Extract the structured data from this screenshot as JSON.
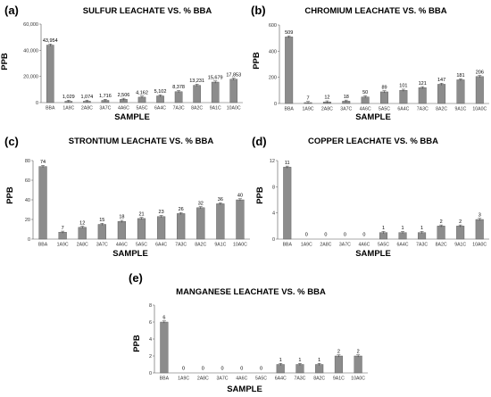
{
  "chart_data": [
    {
      "type": "bar",
      "panel": "(a)",
      "title": "SULFUR LEACHATE VS. % BBA",
      "xlabel": "SAMPLE",
      "ylabel": "PPB",
      "categories": [
        "BBA",
        "1A9C",
        "2A8C",
        "3A7C",
        "4A6C",
        "5A5C",
        "6A4C",
        "7A3C",
        "8A2C",
        "9A1C",
        "10A0C"
      ],
      "values": [
        43954,
        1029,
        1074,
        1716,
        2506,
        4162,
        5102,
        8378,
        13231,
        15679,
        17853
      ],
      "data_labels": [
        "43,954",
        "1,029",
        "1,074",
        "1,716",
        "2,506",
        "4,162",
        "5,102",
        "8,378",
        "13,231",
        "15,679",
        "17,853"
      ],
      "ylim": [
        0,
        60000
      ],
      "yticks": [
        0,
        20000,
        40000,
        60000
      ],
      "ytick_labels": [
        "0",
        "20,000",
        "40,000",
        "60,000"
      ]
    },
    {
      "type": "bar",
      "panel": "(b)",
      "title": "CHROMIUM LEACHATE VS. % BBA",
      "xlabel": "SAMPLE",
      "ylabel": "PPB",
      "categories": [
        "BBA",
        "1A9C",
        "2A8C",
        "3A7C",
        "4A6C",
        "5A5C",
        "6A4C",
        "7A3C",
        "8A2C",
        "9A1C",
        "10A0C"
      ],
      "values": [
        509,
        7,
        12,
        18,
        50,
        89,
        101,
        121,
        147,
        181,
        206
      ],
      "data_labels": [
        "509",
        "7",
        "12",
        "18",
        "50",
        "89",
        "101",
        "121",
        "147",
        "181",
        "206"
      ],
      "ylim": [
        0,
        600
      ],
      "yticks": [
        0,
        200,
        400,
        600
      ],
      "ytick_labels": [
        "0",
        "200",
        "400",
        "600"
      ]
    },
    {
      "type": "bar",
      "panel": "(c)",
      "title": "STRONTIUM LEACHATE VS. % BBA",
      "xlabel": "SAMPLE",
      "ylabel": "PPB",
      "categories": [
        "BBA",
        "1A9C",
        "2A8C",
        "3A7C",
        "4A6C",
        "5A5C",
        "6A4C",
        "7A3C",
        "8A2C",
        "9A1C",
        "10A0C"
      ],
      "values": [
        74,
        7,
        12,
        15,
        18,
        21,
        23,
        26,
        32,
        36,
        40
      ],
      "data_labels": [
        "74",
        "7",
        "12",
        "15",
        "18",
        "21",
        "23",
        "26",
        "32",
        "36",
        "40"
      ],
      "ylim": [
        0,
        80
      ],
      "yticks": [
        0,
        20,
        40,
        60,
        80
      ],
      "ytick_labels": [
        "0",
        "20",
        "40",
        "60",
        "80"
      ]
    },
    {
      "type": "bar",
      "panel": "(d)",
      "title": "COPPER LEACHATE VS. % BBA",
      "xlabel": "SAMPLE",
      "ylabel": "PPB",
      "categories": [
        "BBA",
        "1A9C",
        "2A8C",
        "3A7C",
        "4A6C",
        "5A5C",
        "6A4C",
        "7A3C",
        "8A2C",
        "9A1C",
        "10A0C"
      ],
      "values": [
        11,
        0,
        0,
        0,
        0,
        1,
        1,
        1,
        2,
        2,
        3
      ],
      "data_labels": [
        "11",
        "0",
        "0",
        "0",
        "0",
        "1",
        "1",
        "1",
        "2",
        "2",
        "3"
      ],
      "ylim": [
        0,
        12
      ],
      "yticks": [
        0,
        4,
        8,
        12
      ],
      "ytick_labels": [
        "0",
        "4",
        "8",
        "12"
      ]
    },
    {
      "type": "bar",
      "panel": "(e)",
      "title": "MANGANESE LEACHATE VS. % BBA",
      "xlabel": "SAMPLE",
      "ylabel": "PPB",
      "categories": [
        "BBA",
        "1A9C",
        "2A8C",
        "3A7C",
        "4A6C",
        "5A5C",
        "6A4C",
        "7A3C",
        "8A2C",
        "9A1C",
        "10A0C"
      ],
      "values": [
        6,
        0,
        0,
        0,
        0,
        0,
        1,
        1,
        1,
        2,
        2
      ],
      "data_labels": [
        "6",
        "0",
        "0",
        "0",
        "0",
        "0",
        "1",
        "1",
        "1",
        "2",
        "2"
      ],
      "ylim": [
        0,
        8
      ],
      "yticks": [
        0,
        2,
        4,
        6,
        8
      ],
      "ytick_labels": [
        "0",
        "2",
        "4",
        "6",
        "8"
      ]
    }
  ],
  "colors": {
    "bar_fill": "#8c8c8c",
    "bar_stroke": "#555555",
    "axis": "#555555"
  }
}
